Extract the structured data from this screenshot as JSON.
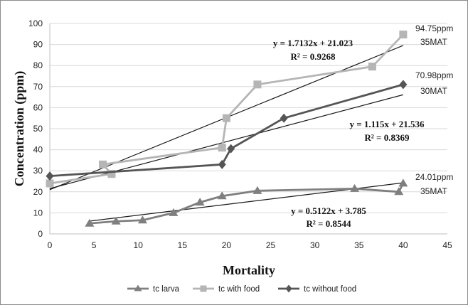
{
  "chart_data": {
    "type": "line",
    "xlabel": "Mortality",
    "ylabel": "Concentration (ppm)",
    "xlim": [
      0,
      45
    ],
    "ylim": [
      0,
      100
    ],
    "x_ticks": [
      "0",
      "5",
      "10",
      "15",
      "20",
      "25",
      "30",
      "35",
      "40",
      "45"
    ],
    "y_ticks": [
      "0",
      "10",
      "20",
      "30",
      "40",
      "50",
      "60",
      "70",
      "80",
      "90",
      "100"
    ],
    "legend_position": "bottom",
    "series": [
      {
        "name": "tc larva",
        "color": "#7f7f7f",
        "marker": "triangle",
        "x": [
          4.5,
          7.5,
          10.5,
          14,
          17,
          19.5,
          23.5,
          34.5,
          39.5,
          40
        ],
        "y": [
          5,
          6,
          6.5,
          10,
          15,
          18,
          20.5,
          21.5,
          20,
          24.01
        ],
        "trendline": {
          "slope": 0.5122,
          "intercept": 3.785,
          "x_range": [
            4.5,
            40
          ]
        },
        "equation": "y = 0.5122x + 3.785",
        "r2": "R² = 0.8544",
        "end_labels": [
          "24.01ppm",
          "35MAT"
        ]
      },
      {
        "name": "tc with food",
        "color": "#b5b5b5",
        "marker": "square",
        "x": [
          0,
          7,
          6,
          19.5,
          20,
          23.5,
          36.5,
          40
        ],
        "y": [
          24,
          28.5,
          33,
          41,
          55,
          71,
          79.5,
          94.75
        ],
        "trendline": {
          "slope": 1.7132,
          "intercept": 21.023,
          "x_range": [
            0,
            40
          ]
        },
        "equation": "y = 1.7132x + 21.023",
        "r2": "R² = 0.9268",
        "end_labels": [
          "94.75ppm",
          "35MAT"
        ]
      },
      {
        "name": "tc without food",
        "color": "#555555",
        "marker": "diamond",
        "x": [
          0,
          19.5,
          20.5,
          26.5,
          40
        ],
        "y": [
          27.5,
          33,
          40.5,
          55,
          70.98
        ],
        "trendline": {
          "slope": 1.115,
          "intercept": 21.536,
          "x_range": [
            0,
            40
          ]
        },
        "equation": "y = 1.115x + 21.536",
        "r2": "R² = 0.8369",
        "end_labels": [
          "70.98ppm",
          "30MAT"
        ]
      }
    ]
  }
}
